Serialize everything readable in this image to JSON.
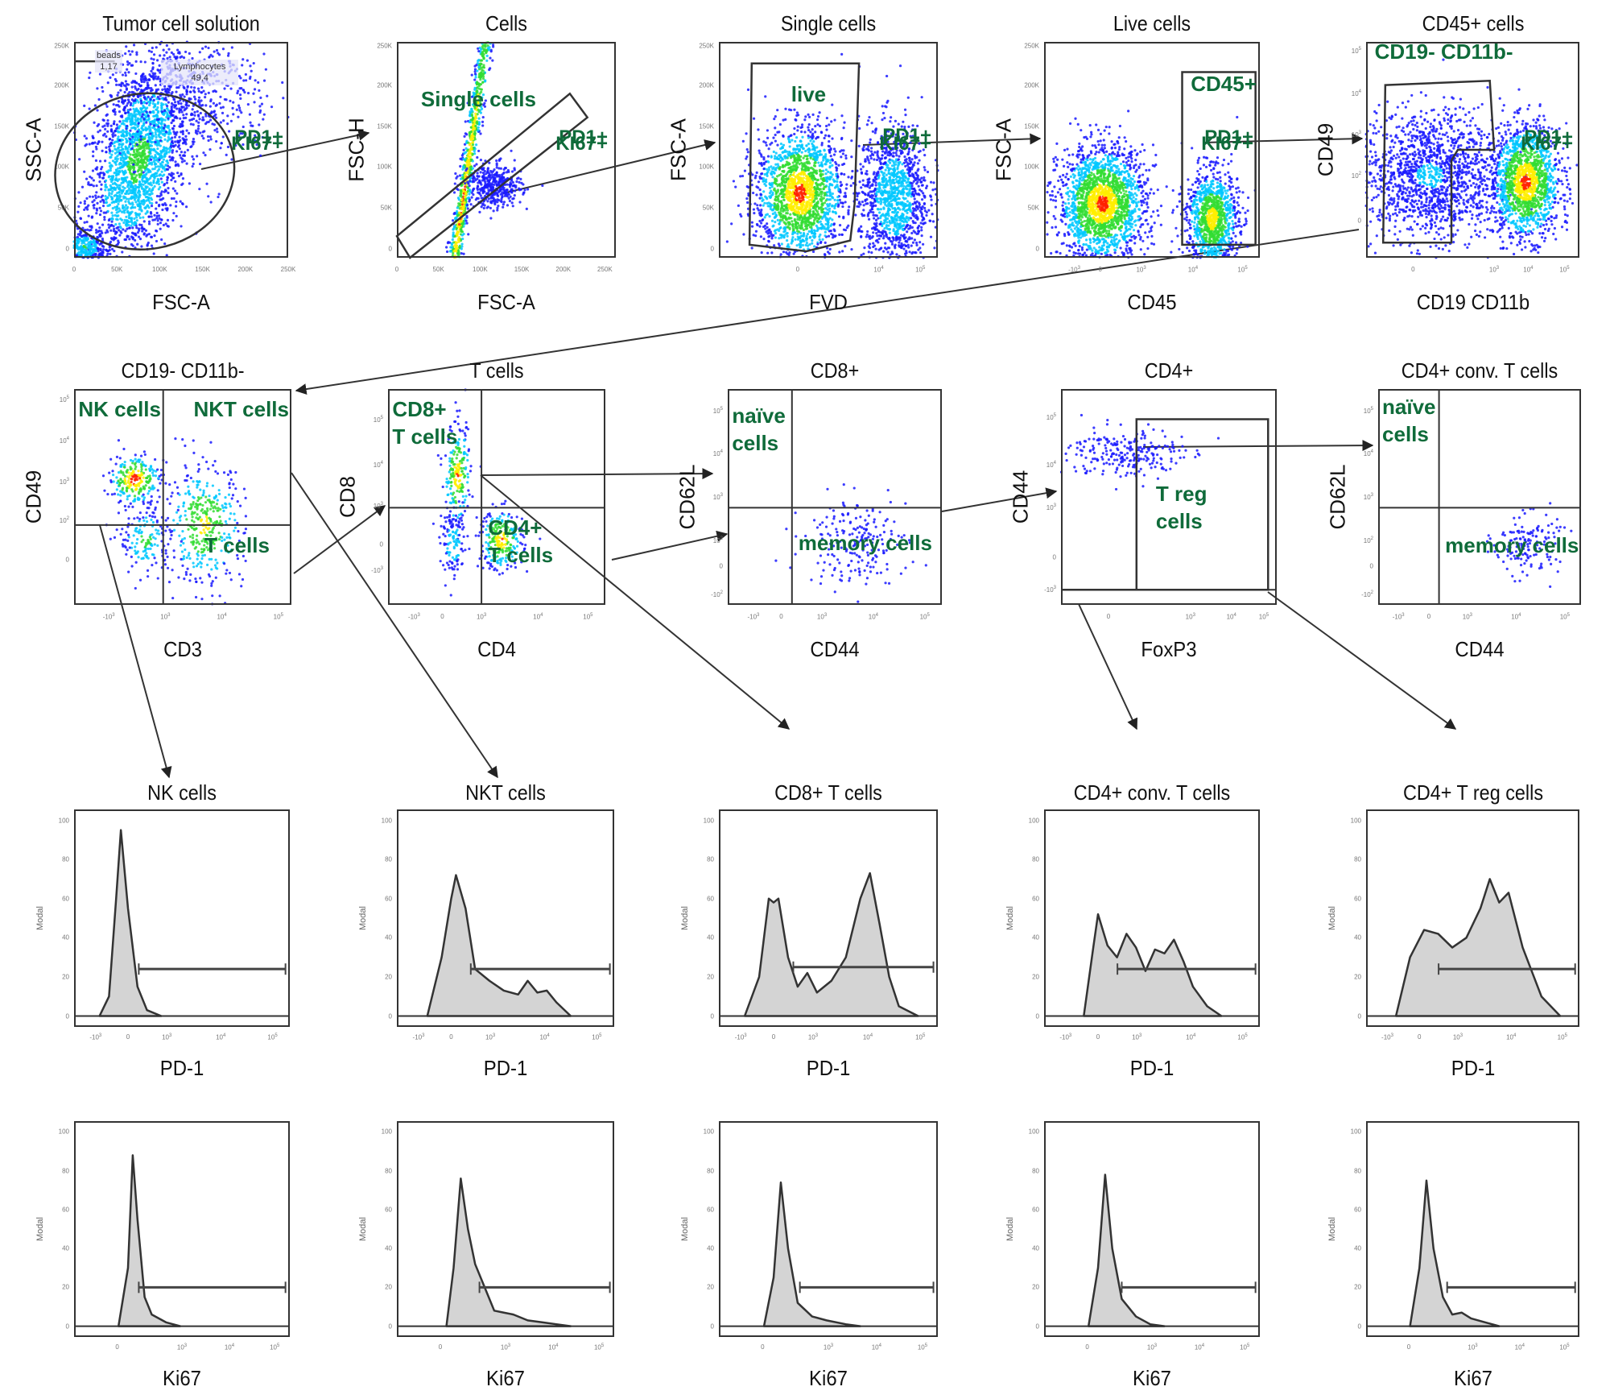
{
  "figure": {
    "gate_label_color": "#0f6b3a",
    "dot_colors": [
      "#1a1aff",
      "#00c8ff",
      "#33dd33",
      "#ffee00",
      "#ff2200"
    ]
  },
  "row1": [
    {
      "title": "Tumor cell solution",
      "xlabel": "FSC-A",
      "ylabel": "SSC-A",
      "xticks": [
        "0",
        "50K",
        "100K",
        "150K",
        "200K",
        "250K"
      ],
      "yticks": [
        "0",
        "50K",
        "100K",
        "150K",
        "200K",
        "250K"
      ],
      "gates": [
        {
          "label": "beads",
          "value": "1,17"
        },
        {
          "label": "Lymphocytes",
          "value": "49,4"
        }
      ]
    },
    {
      "title": "Cells",
      "xlabel": "FSC-A",
      "ylabel": "FSC-H",
      "xticks": [
        "0",
        "50K",
        "100K",
        "150K",
        "200K",
        "250K"
      ],
      "yticks": [
        "0",
        "50K",
        "100K",
        "150K",
        "200K",
        "250K"
      ],
      "gate": "Single cells"
    },
    {
      "title": "Single cells",
      "xlabel": "FVD",
      "ylabel": "FSC-A",
      "xticks": [
        "0",
        "10^4",
        "10^5"
      ],
      "yticks": [
        "0",
        "50K",
        "100K",
        "150K",
        "200K",
        "250K"
      ],
      "gate": "live"
    },
    {
      "title": "Live cells",
      "xlabel": "CD45",
      "ylabel": "FSC-A",
      "xticks": [
        "-10^3",
        "0",
        "10^3",
        "10^4",
        "10^5"
      ],
      "yticks": [
        "0",
        "50K",
        "100K",
        "150K",
        "200K",
        "250K"
      ],
      "gate": "CD45+"
    },
    {
      "title": "CD45+ cells",
      "xlabel": "CD19 CD11b",
      "ylabel": "CD49",
      "xticks": [
        "0",
        "10^3",
        "10^4",
        "10^5"
      ],
      "yticks": [
        "0",
        "10^2",
        "10^3",
        "10^4",
        "10^5"
      ],
      "gate": "CD19- CD11b-"
    }
  ],
  "row2": [
    {
      "title": "CD19- CD11b-",
      "xlabel": "CD3",
      "ylabel": "CD49",
      "xticks": [
        "-10^3",
        "10^3",
        "10^4",
        "10^5"
      ],
      "yticks": [
        "0",
        "10^2",
        "10^3",
        "10^4",
        "10^5"
      ],
      "gates": [
        "NK cells",
        "NKT cells",
        "T cells"
      ]
    },
    {
      "title": "T cells",
      "xlabel": "CD4",
      "ylabel": "CD8",
      "xticks": [
        "-10^3",
        "0",
        "10^3",
        "10^4",
        "10^5"
      ],
      "yticks": [
        "-10^3",
        "0",
        "10^3",
        "10^4",
        "10^5"
      ],
      "gates": [
        "CD8+\nT cells",
        "CD4+\nT cells"
      ]
    },
    {
      "title": "CD8+",
      "xlabel": "CD44",
      "ylabel": "CD62L",
      "xticks": [
        "-10^3",
        "0",
        "10^3",
        "10^4",
        "10^5"
      ],
      "yticks": [
        "-10^2",
        "0",
        "10^2",
        "10^3",
        "10^4",
        "10^5"
      ],
      "gates": [
        "naïve\ncells",
        "memory cells"
      ]
    },
    {
      "title": "CD4+",
      "xlabel": "FoxP3",
      "ylabel": "CD44",
      "xticks": [
        "0",
        "10^3",
        "10^4",
        "10^5"
      ],
      "yticks": [
        "-10^3",
        "0",
        "10^3",
        "10^4",
        "10^5"
      ],
      "gates": [
        "T reg\ncells"
      ]
    },
    {
      "title": "CD4+ conv. T cells",
      "xlabel": "CD44",
      "ylabel": "CD62L",
      "xticks": [
        "-10^3",
        "0",
        "10^3",
        "10^4",
        "10^5"
      ],
      "yticks": [
        "-10^2",
        "0",
        "10^2",
        "10^3",
        "10^4",
        "10^5"
      ],
      "gates": [
        "naïve\ncells",
        "memory cells"
      ]
    }
  ],
  "hist_common": {
    "ylabel": "Modal",
    "yticks": [
      "0",
      "20",
      "40",
      "60",
      "80",
      "100"
    ]
  },
  "row3": {
    "xlabel": "PD-1",
    "gate": "PD1+",
    "xticks": [
      "-10^3",
      "0",
      "10^3",
      "10^4",
      "10^5"
    ],
    "panels": [
      {
        "title": "NK cells"
      },
      {
        "title": "NKT cells"
      },
      {
        "title": "CD8+ T cells"
      },
      {
        "title": "CD4+ conv. T cells"
      },
      {
        "title": "CD4+ T reg cells"
      }
    ]
  },
  "row4": {
    "xlabel": "Ki67",
    "gate": "KI67+",
    "xticks": [
      "0",
      "10^3",
      "10^4",
      "10^5"
    ],
    "panels": [
      {},
      {},
      {},
      {},
      {}
    ]
  },
  "chart_data": [
    {
      "type": "line",
      "title": "NK cells",
      "xlabel": "PD-1",
      "ylabel": "Modal",
      "ylim": [
        0,
        100
      ],
      "x_log_decades": [
        -1,
        0,
        3,
        4,
        5
      ],
      "gate": "PD1+",
      "gate_level": 24,
      "x": [
        -0.6,
        -0.4,
        -0.25,
        -0.15,
        0,
        0.2,
        0.4,
        0.7
      ],
      "y": [
        0,
        10,
        60,
        95,
        55,
        15,
        3,
        0
      ]
    },
    {
      "type": "line",
      "title": "NKT cells",
      "xlabel": "PD-1",
      "ylabel": "Modal",
      "ylim": [
        0,
        100
      ],
      "gate": "PD1+",
      "gate_level": 24,
      "x": [
        -0.5,
        -0.2,
        0,
        0.1,
        0.3,
        0.5,
        0.8,
        1.1,
        1.4,
        1.6,
        1.8,
        2.0,
        2.2,
        2.5
      ],
      "y": [
        0,
        30,
        60,
        72,
        55,
        24,
        18,
        13,
        11,
        18,
        12,
        13,
        7,
        0
      ]
    },
    {
      "type": "line",
      "title": "CD8+ T cells",
      "xlabel": "PD-1",
      "ylabel": "Modal",
      "ylim": [
        0,
        100
      ],
      "gate": "PD1+",
      "gate_level": 25,
      "x": [
        -0.6,
        -0.3,
        -0.1,
        0,
        0.1,
        0.3,
        0.5,
        0.7,
        0.9,
        1.2,
        1.5,
        1.8,
        2.0,
        2.2,
        2.4,
        2.6,
        3.0
      ],
      "y": [
        0,
        20,
        60,
        58,
        60,
        30,
        15,
        22,
        12,
        18,
        30,
        60,
        73,
        47,
        20,
        5,
        0
      ]
    },
    {
      "type": "line",
      "title": "CD4+ conv. T cells",
      "xlabel": "PD-1",
      "ylabel": "Modal",
      "ylim": [
        0,
        100
      ],
      "gate": "PD1+",
      "gate_level": 24,
      "x": [
        -0.3,
        -0.1,
        0,
        0.2,
        0.4,
        0.6,
        0.8,
        1.0,
        1.2,
        1.4,
        1.6,
        1.8,
        2.0,
        2.3,
        2.6
      ],
      "y": [
        0,
        35,
        52,
        36,
        30,
        42,
        35,
        23,
        34,
        32,
        39,
        28,
        15,
        5,
        0
      ]
    },
    {
      "type": "line",
      "title": "CD4+ T reg cells",
      "xlabel": "PD-1",
      "ylabel": "Modal",
      "ylim": [
        0,
        100
      ],
      "gate": "PD1+",
      "gate_level": 24,
      "x": [
        -0.5,
        -0.2,
        0.1,
        0.4,
        0.7,
        1.0,
        1.3,
        1.5,
        1.7,
        1.9,
        2.2,
        2.6,
        3.0
      ],
      "y": [
        0,
        30,
        44,
        42,
        35,
        40,
        55,
        70,
        58,
        63,
        35,
        10,
        0
      ]
    },
    {
      "type": "line",
      "title": "NK cells",
      "xlabel": "Ki67",
      "ylabel": "Modal",
      "ylim": [
        0,
        100
      ],
      "gate": "KI67+",
      "gate_level": 20,
      "x": [
        -0.2,
        0,
        0.1,
        0.2,
        0.35,
        0.5,
        0.8,
        1.1
      ],
      "y": [
        0,
        30,
        88,
        55,
        15,
        6,
        2,
        0
      ]
    },
    {
      "type": "line",
      "title": "NKT cells",
      "xlabel": "Ki67",
      "ylabel": "Modal",
      "ylim": [
        0,
        100
      ],
      "gate": "KI67+",
      "gate_level": 20,
      "x": [
        -0.1,
        0.05,
        0.2,
        0.35,
        0.5,
        0.7,
        0.9,
        1.1,
        1.3,
        1.6,
        1.9,
        2.2,
        2.5
      ],
      "y": [
        0,
        30,
        76,
        50,
        32,
        20,
        8,
        7,
        6,
        3,
        2,
        1,
        0
      ]
    },
    {
      "type": "line",
      "title": "CD8+ T cells",
      "xlabel": "Ki67",
      "ylabel": "Modal",
      "ylim": [
        0,
        100
      ],
      "gate": "KI67+",
      "gate_level": 20,
      "x": [
        -0.2,
        0,
        0.15,
        0.3,
        0.5,
        0.8,
        1.1,
        1.5,
        1.8
      ],
      "y": [
        0,
        25,
        74,
        40,
        12,
        5,
        3,
        1,
        0
      ]
    },
    {
      "type": "line",
      "title": "CD4+ conv. T cells",
      "xlabel": "Ki67",
      "ylabel": "Modal",
      "ylim": [
        0,
        100
      ],
      "gate": "KI67+",
      "gate_level": 20,
      "x": [
        -0.2,
        0,
        0.15,
        0.3,
        0.5,
        0.8,
        1.1,
        1.4
      ],
      "y": [
        0,
        30,
        78,
        40,
        14,
        5,
        1,
        0
      ]
    },
    {
      "type": "line",
      "title": "CD4+ T reg cells",
      "xlabel": "Ki67",
      "ylabel": "Modal",
      "ylim": [
        0,
        100
      ],
      "gate": "KI67+",
      "gate_level": 20,
      "x": [
        -0.2,
        0,
        0.15,
        0.3,
        0.5,
        0.7,
        0.9,
        1.1,
        1.4,
        1.7
      ],
      "y": [
        0,
        30,
        75,
        40,
        15,
        6,
        7,
        4,
        2,
        0
      ]
    }
  ]
}
